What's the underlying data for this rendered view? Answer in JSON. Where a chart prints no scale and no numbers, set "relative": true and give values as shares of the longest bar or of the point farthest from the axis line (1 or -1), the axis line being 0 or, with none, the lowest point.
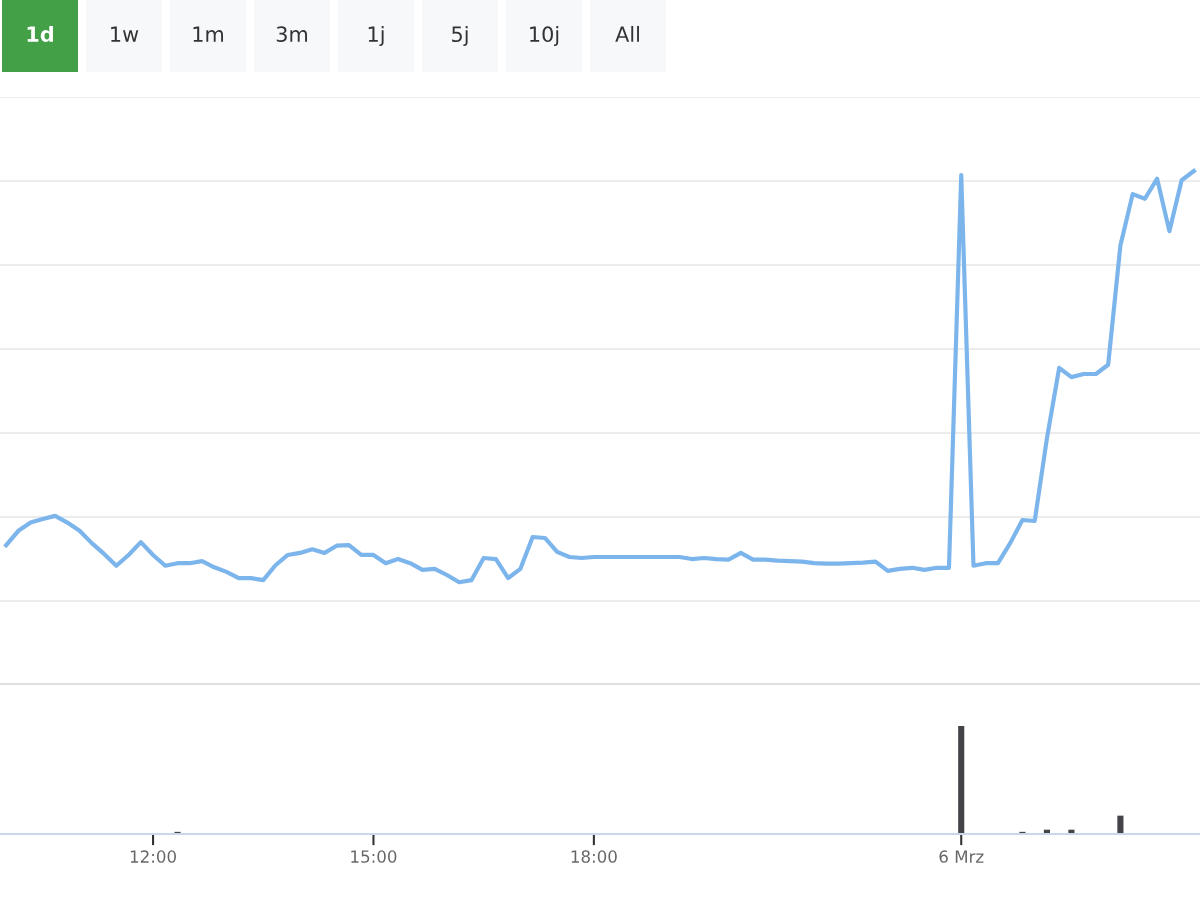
{
  "chart_data": [
    {
      "type": "line",
      "relative": true,
      "grid": "y",
      "line_style": "solid",
      "annotations": [
        "1d",
        "1w",
        "1m",
        "3m",
        "1j",
        "5j",
        "10j",
        "All"
      ],
      "categories": [
        null,
        null,
        null,
        null,
        null,
        null,
        null,
        null,
        null,
        null,
        null,
        null,
        null,
        null,
        null,
        null,
        null,
        null,
        null,
        null,
        null,
        null,
        null,
        null,
        null,
        null,
        null,
        null,
        null,
        null,
        null,
        null,
        null,
        null,
        null,
        null,
        null,
        null,
        null,
        null,
        null,
        null,
        null,
        null,
        null,
        null,
        null,
        null,
        null,
        null,
        null,
        null,
        null,
        null,
        null,
        null,
        null,
        null,
        null,
        null,
        null,
        null,
        null,
        null,
        null,
        null,
        null,
        null,
        null,
        null,
        null,
        null,
        null,
        null,
        null,
        null,
        null,
        null,
        null,
        null,
        null,
        null,
        null,
        null,
        null,
        null,
        null,
        null,
        null,
        null,
        null,
        null,
        null,
        null,
        null,
        null,
        null,
        null
      ],
      "series": [
        {
          "color": "#7cb5ec",
          "values": [
            0.272,
            0.3,
            0.316,
            0.323,
            0.329,
            0.316,
            0.3,
            0.276,
            0.255,
            0.232,
            0.253,
            0.278,
            0.253,
            0.232,
            0.237,
            0.237,
            0.241,
            0.229,
            0.22,
            0.208,
            0.208,
            0.204,
            0.233,
            0.253,
            0.257,
            0.264,
            0.257,
            0.271,
            0.272,
            0.253,
            0.253,
            0.237,
            0.245,
            0.237,
            0.224,
            0.226,
            0.214,
            0.2,
            0.204,
            0.247,
            0.245,
            0.208,
            0.226,
            0.288,
            0.286,
            0.259,
            0.249,
            0.247,
            0.249,
            0.249,
            0.249,
            0.249,
            0.249,
            0.249,
            0.249,
            0.249,
            0.245,
            0.247,
            0.245,
            0.244,
            0.257,
            0.244,
            0.244,
            0.242,
            0.241,
            0.24,
            0.237,
            0.236,
            0.236,
            0.237,
            0.238,
            0.24,
            0.222,
            0.226,
            0.228,
            0.224,
            0.228,
            0.228,
            0.992,
            0.232,
            0.237,
            0.237,
            0.276,
            0.321,
            0.319,
            0.48,
            0.617,
            0.599,
            0.605,
            0.605,
            0.623,
            0.855,
            0.955,
            0.946,
            0.985,
            0.883,
            0.982,
            1
          ]
        }
      ]
    },
    {
      "type": "bar",
      "relative": true,
      "categories": [
        null,
        null,
        null,
        null,
        null,
        null,
        null,
        null,
        null,
        null,
        null,
        null,
        "12:00",
        null,
        null,
        null,
        null,
        null,
        null,
        null,
        null,
        null,
        null,
        null,
        null,
        null,
        null,
        null,
        null,
        null,
        "15:00",
        null,
        null,
        null,
        null,
        null,
        null,
        null,
        null,
        null,
        null,
        null,
        null,
        null,
        null,
        null,
        null,
        null,
        "18:00",
        null,
        null,
        null,
        null,
        null,
        null,
        null,
        null,
        null,
        null,
        null,
        null,
        null,
        null,
        null,
        null,
        null,
        null,
        null,
        null,
        null,
        null,
        null,
        null,
        null,
        null,
        null,
        null,
        null,
        "6 Mrz",
        null,
        null,
        null,
        null,
        null,
        null,
        null,
        null,
        null,
        null,
        null,
        null,
        null,
        null,
        null,
        null,
        null,
        null,
        null
      ],
      "series": [
        {
          "color": "#434348",
          "values": [
            null,
            null,
            null,
            null,
            null,
            null,
            null,
            null,
            null,
            null,
            null,
            null,
            null,
            null,
            0.02,
            null,
            null,
            null,
            null,
            null,
            null,
            null,
            null,
            null,
            null,
            null,
            null,
            null,
            null,
            null,
            null,
            null,
            null,
            null,
            null,
            null,
            null,
            null,
            null,
            null,
            null,
            null,
            null,
            null,
            null,
            null,
            null,
            null,
            null,
            null,
            null,
            null,
            null,
            null,
            null,
            null,
            null,
            null,
            null,
            null,
            null,
            null,
            null,
            null,
            null,
            null,
            null,
            null,
            null,
            null,
            null,
            null,
            null,
            null,
            null,
            null,
            null,
            null,
            1,
            null,
            null,
            null,
            null,
            0.02,
            null,
            0.04,
            null,
            0.04,
            null,
            null,
            null,
            0.17,
            null,
            null,
            null,
            null,
            null,
            null
          ]
        }
      ]
    }
  ]
}
